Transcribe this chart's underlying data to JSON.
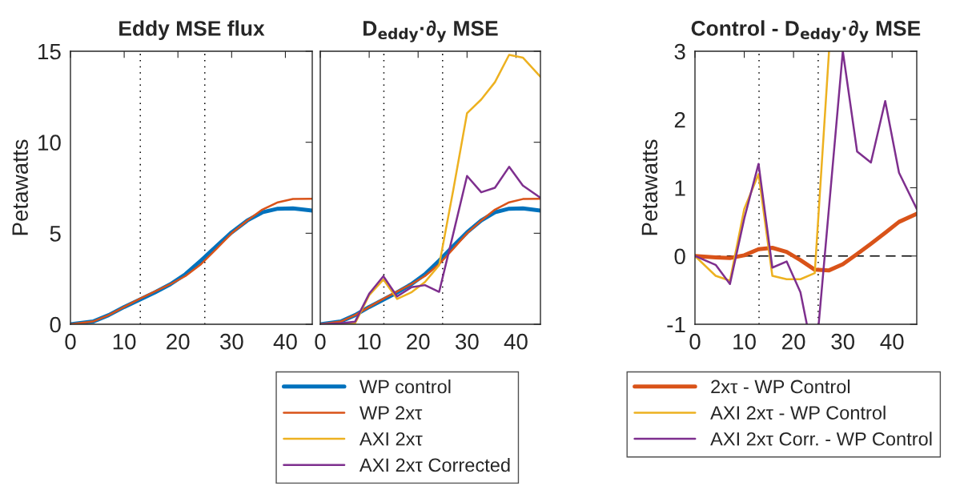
{
  "chart_data": [
    {
      "type": "line",
      "title": "Eddy MSE flux",
      "ylabel": "Petawatts",
      "xlim": [
        0,
        45
      ],
      "ylim": [
        0,
        15
      ],
      "xticks": [
        0,
        10,
        20,
        30,
        40
      ],
      "yticks": [
        0,
        5,
        10,
        15
      ],
      "grid": false,
      "legend": false,
      "x": [
        0,
        4.2,
        7.1,
        10,
        12.9,
        15.7,
        18.6,
        21.4,
        24.3,
        27.2,
        30,
        32.9,
        35.7,
        38.6,
        41.4,
        45
      ],
      "series": [
        {
          "color": "#0072bd",
          "values": [
            0,
            0.15,
            0.5,
            0.95,
            1.35,
            1.75,
            2.2,
            2.75,
            3.5,
            4.3,
            5.05,
            5.7,
            6.15,
            6.35,
            6.37,
            6.25
          ]
        },
        {
          "color": "#d95319",
          "values": [
            0,
            0.15,
            0.5,
            0.95,
            1.4,
            1.8,
            2.2,
            2.65,
            3.3,
            4.15,
            5.0,
            5.7,
            6.3,
            6.7,
            6.88,
            6.9
          ]
        }
      ],
      "ref_lines": [
        {
          "axis": "x",
          "value": 13,
          "color": "#000000",
          "line_style": "dotted"
        },
        {
          "axis": "x",
          "value": 25,
          "color": "#000000",
          "line_style": "dotted"
        }
      ]
    },
    {
      "type": "line",
      "title": "D$_{eddy}$·∂$_{y}$ MSE",
      "xlim": [
        0,
        45
      ],
      "ylim": [
        0,
        15
      ],
      "xticks": [
        0,
        10,
        20,
        30,
        40
      ],
      "yticks": [
        0,
        5,
        10,
        15
      ],
      "tick_labels": "x",
      "grid": false,
      "legend": "bottom",
      "x": [
        0,
        4.2,
        7.1,
        10,
        12.9,
        15.7,
        18.6,
        21.4,
        24.3,
        27.2,
        30,
        32.9,
        35.7,
        38.6,
        41.4,
        45
      ],
      "series": [
        {
          "name": "WP control",
          "color": "#0072bd",
          "values": [
            0,
            0.15,
            0.5,
            0.95,
            1.35,
            1.75,
            2.2,
            2.75,
            3.5,
            4.3,
            5.05,
            5.7,
            6.15,
            6.35,
            6.37,
            6.25
          ]
        },
        {
          "name": "WP 2xτ",
          "color": "#d95319",
          "values": [
            0,
            0.15,
            0.5,
            0.95,
            1.4,
            1.8,
            2.2,
            2.65,
            3.3,
            4.15,
            5.0,
            5.7,
            6.3,
            6.7,
            6.88,
            6.9
          ]
        },
        {
          "name": "AXI 2xτ",
          "color": "#edb120",
          "values": [
            0,
            0,
            0.05,
            1.6,
            2.46,
            1.39,
            1.75,
            2.32,
            3.25,
            7.4,
            11.6,
            12.35,
            13.3,
            14.8,
            14.65,
            13.6
          ]
        },
        {
          "name": "AXI 2xτ Corrected",
          "color": "#7e2f8e",
          "values": [
            0,
            0.05,
            0.14,
            1.68,
            2.64,
            1.53,
            2.03,
            2.15,
            1.78,
            5.0,
            8.15,
            7.25,
            7.5,
            8.65,
            7.62,
            6.95
          ]
        }
      ],
      "ref_lines": [
        {
          "axis": "x",
          "value": 13,
          "color": "#000000",
          "line_style": "dotted"
        },
        {
          "axis": "x",
          "value": 25,
          "color": "#000000",
          "line_style": "dotted"
        }
      ]
    },
    {
      "type": "line",
      "title": "Control - D$_{eddy}$·∂$_{y}$ MSE",
      "ylabel": "Petawatts",
      "xlim": [
        0,
        45
      ],
      "ylim": [
        -1,
        3
      ],
      "xticks": [
        0,
        10,
        20,
        30,
        40
      ],
      "yticks": [
        -1,
        0,
        1,
        2,
        3
      ],
      "grid": false,
      "legend": "bottom",
      "series": [
        {
          "name": "2xτ - WP Control",
          "color": "#d95319",
          "x": [
            0,
            4.2,
            7.1,
            10,
            12.9,
            15.7,
            18.6,
            21.4,
            24.3,
            27.2,
            30,
            32.9,
            35.7,
            38.6,
            41.4,
            45
          ],
          "values": [
            0,
            -0.02,
            -0.03,
            0.01,
            0.1,
            0.12,
            0.06,
            -0.06,
            -0.2,
            -0.21,
            -0.12,
            0.03,
            0.18,
            0.34,
            0.5,
            0.62
          ]
        },
        {
          "name": "AXI 2xτ - WP Control",
          "color": "#edb120",
          "x": [
            0,
            4.2,
            7.1,
            10,
            12.9,
            15.7,
            18.6,
            21.4,
            24.3,
            27.2
          ],
          "values": [
            0,
            -0.29,
            -0.36,
            0.69,
            1.2,
            -0.29,
            -0.34,
            -0.34,
            -0.25,
            3.0
          ]
        },
        {
          "name": "AXI 2xτ Corr. - WP Control",
          "color": "#7e2f8e",
          "x": [
            0,
            4.2,
            7.1,
            10,
            12.9,
            15.7,
            18.6,
            21.4,
            22.7,
            24.0,
            25.1,
            30,
            32.9,
            35.7,
            38.6,
            41.4,
            45
          ],
          "values": [
            0,
            -0.13,
            -0.41,
            0.55,
            1.35,
            -0.17,
            -0.08,
            -0.53,
            -1,
            null,
            -1,
            3.0,
            1.53,
            1.37,
            2.27,
            1.22,
            0.69
          ]
        }
      ],
      "ref_lines": [
        {
          "axis": "x",
          "value": 13,
          "color": "#000000",
          "line_style": "dotted"
        },
        {
          "axis": "x",
          "value": 25,
          "color": "#000000",
          "line_style": "dotted"
        },
        {
          "axis": "y",
          "value": 0,
          "color": "#000000",
          "line_style": "dashed"
        }
      ]
    }
  ]
}
